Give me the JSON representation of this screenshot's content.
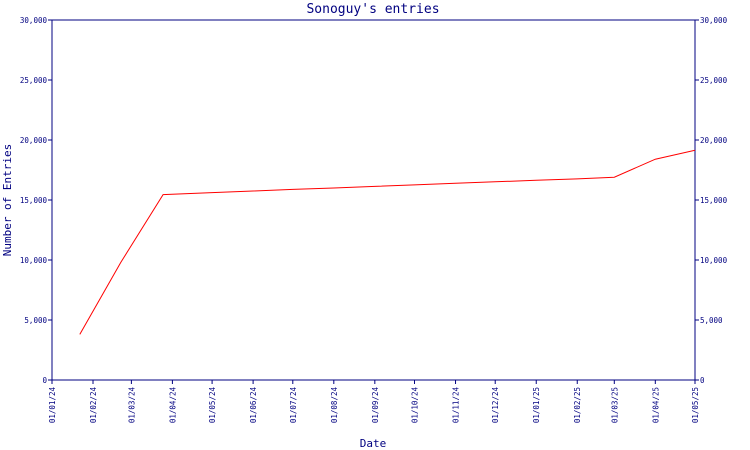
{
  "colors": {
    "axis": "#000080",
    "text": "#000080",
    "line": "#ff0000",
    "background": "#ffffff"
  },
  "chart_data": {
    "type": "line",
    "title": "Sonoguy's entries",
    "xlabel": "Date",
    "ylabel": "Number of Entries",
    "ylim": [
      0,
      30000
    ],
    "yticks": [
      {
        "value": 0,
        "label": "0"
      },
      {
        "value": 5000,
        "label": "5,000"
      },
      {
        "value": 10000,
        "label": "10,000"
      },
      {
        "value": 15000,
        "label": "15,000"
      },
      {
        "value": 20000,
        "label": "20,000"
      },
      {
        "value": 25000,
        "label": "25,000"
      },
      {
        "value": 30000,
        "label": "30,000"
      }
    ],
    "right_axis": true,
    "grid": false,
    "x_start": "2024-01-01",
    "x_end": "2025-05-01",
    "xticks": [
      {
        "date": "2024-01-01",
        "label": "01/01/24"
      },
      {
        "date": "2024-02-01",
        "label": "01/02/24"
      },
      {
        "date": "2024-03-01",
        "label": "01/03/24"
      },
      {
        "date": "2024-04-01",
        "label": "01/04/24"
      },
      {
        "date": "2024-05-01",
        "label": "01/05/24"
      },
      {
        "date": "2024-06-01",
        "label": "01/06/24"
      },
      {
        "date": "2024-07-01",
        "label": "01/07/24"
      },
      {
        "date": "2024-08-01",
        "label": "01/08/24"
      },
      {
        "date": "2024-09-01",
        "label": "01/09/24"
      },
      {
        "date": "2024-10-01",
        "label": "01/10/24"
      },
      {
        "date": "2024-11-01",
        "label": "01/11/24"
      },
      {
        "date": "2024-12-01",
        "label": "01/12/24"
      },
      {
        "date": "2025-01-01",
        "label": "01/01/25"
      },
      {
        "date": "2025-02-01",
        "label": "01/02/25"
      },
      {
        "date": "2025-03-01",
        "label": "01/03/25"
      },
      {
        "date": "2025-04-01",
        "label": "01/04/25"
      },
      {
        "date": "2025-05-01",
        "label": "01/05/25"
      }
    ],
    "series": [
      {
        "points": [
          {
            "x": "2024-01-22",
            "y": 3800
          },
          {
            "x": "2024-02-22",
            "y": 9800
          },
          {
            "x": "2024-03-25",
            "y": 15450
          },
          {
            "x": "2024-05-01",
            "y": 15620
          },
          {
            "x": "2024-06-01",
            "y": 15750
          },
          {
            "x": "2024-07-01",
            "y": 15880
          },
          {
            "x": "2024-08-01",
            "y": 16000
          },
          {
            "x": "2024-09-01",
            "y": 16130
          },
          {
            "x": "2024-10-01",
            "y": 16260
          },
          {
            "x": "2024-11-01",
            "y": 16390
          },
          {
            "x": "2024-12-01",
            "y": 16520
          },
          {
            "x": "2025-01-01",
            "y": 16640
          },
          {
            "x": "2025-02-01",
            "y": 16760
          },
          {
            "x": "2025-03-01",
            "y": 16900
          },
          {
            "x": "2025-04-01",
            "y": 18400
          },
          {
            "x": "2025-05-01",
            "y": 19150
          }
        ]
      }
    ]
  }
}
